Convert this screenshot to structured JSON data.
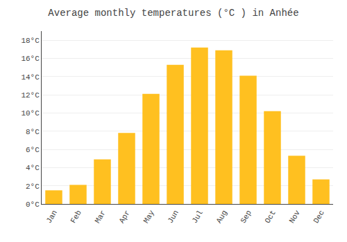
{
  "chart_data": {
    "type": "bar",
    "title": "Average monthly temperatures (°C ) in Anhée",
    "categories": [
      "Jan",
      "Feb",
      "Mar",
      "Apr",
      "May",
      "Jun",
      "Jul",
      "Aug",
      "Sep",
      "Oct",
      "Nov",
      "Dec"
    ],
    "values": [
      1.5,
      2.1,
      4.9,
      7.8,
      12.1,
      15.3,
      17.2,
      16.9,
      14.1,
      10.2,
      5.3,
      2.7
    ],
    "color": "#FFC020",
    "ylim": [
      0,
      19
    ],
    "yticks": [
      {
        "value": 0,
        "label": "0°C"
      },
      {
        "value": 2,
        "label": "2°C"
      },
      {
        "value": 4,
        "label": "4°C"
      },
      {
        "value": 6,
        "label": "6°C"
      },
      {
        "value": 8,
        "label": "8°C"
      },
      {
        "value": 10,
        "label": "10°C"
      },
      {
        "value": 12,
        "label": "12°C"
      },
      {
        "value": 14,
        "label": "14°C"
      },
      {
        "value": 16,
        "label": "16°C"
      },
      {
        "value": 18,
        "label": "18°C"
      }
    ],
    "grid": true
  }
}
